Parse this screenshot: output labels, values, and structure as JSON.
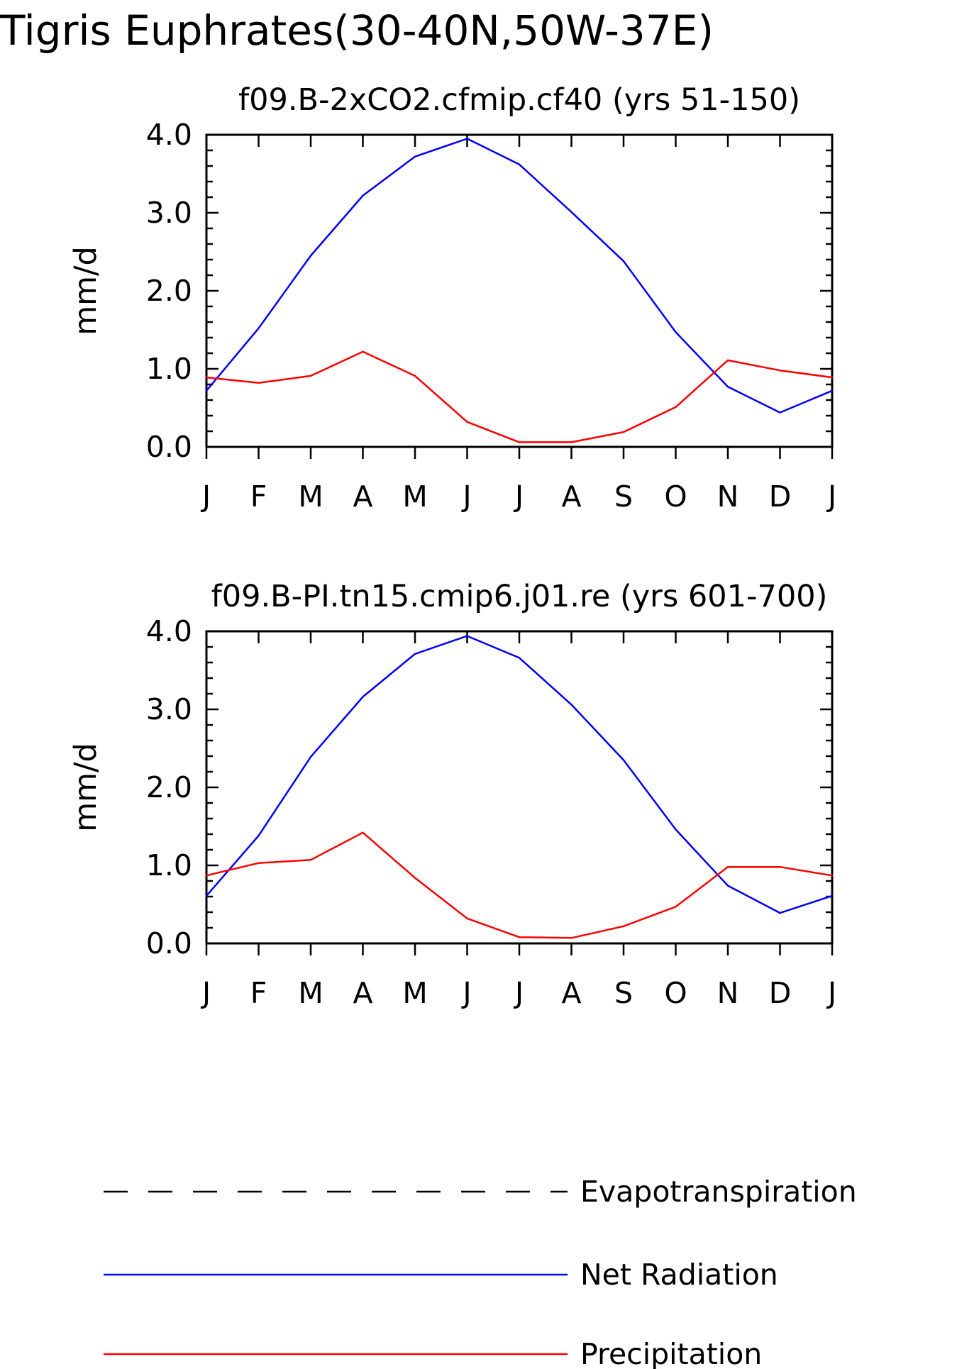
{
  "figure": {
    "title": "Tigris Euphrates(30-40N,50W-37E)"
  },
  "legend": {
    "entries": [
      {
        "name": "Evapotranspiration",
        "color": "#000000",
        "style": "dashed"
      },
      {
        "name": "Net Radiation",
        "color": "#0000ff",
        "style": "solid"
      },
      {
        "name": "Precipitation",
        "color": "#ff0000",
        "style": "solid"
      }
    ]
  },
  "chart_data": [
    {
      "type": "line",
      "title": "f09.B-2xCO2.cfmip.cf40 (yrs 51-150)",
      "xlabel": "",
      "ylabel": "mm/d",
      "categories": [
        "J",
        "F",
        "M",
        "A",
        "M",
        "J",
        "J",
        "A",
        "S",
        "O",
        "N",
        "D",
        "J"
      ],
      "ylim": [
        0,
        4
      ],
      "yticks": [
        "0.0",
        "1.0",
        "2.0",
        "3.0",
        "4.0"
      ],
      "grid": false,
      "series": [
        {
          "name": "Net Radiation",
          "color": "#0000ff",
          "values": [
            0.72,
            1.52,
            2.45,
            3.22,
            3.72,
            3.95,
            3.62,
            3.01,
            2.38,
            1.47,
            0.77,
            0.44,
            0.72
          ]
        },
        {
          "name": "Precipitation",
          "color": "#ff0000",
          "values": [
            0.89,
            0.82,
            0.91,
            1.22,
            0.91,
            0.32,
            0.06,
            0.06,
            0.19,
            0.51,
            1.11,
            0.98,
            0.89
          ]
        }
      ]
    },
    {
      "type": "line",
      "title": "f09.B-PI.tn15.cmip6.j01.re (yrs 601-700)",
      "xlabel": "",
      "ylabel": "mm/d",
      "categories": [
        "J",
        "F",
        "M",
        "A",
        "M",
        "J",
        "J",
        "A",
        "S",
        "O",
        "N",
        "D",
        "J"
      ],
      "ylim": [
        0,
        4
      ],
      "yticks": [
        "0.0",
        "1.0",
        "2.0",
        "3.0",
        "4.0"
      ],
      "grid": false,
      "series": [
        {
          "name": "Net Radiation",
          "color": "#0000ff",
          "values": [
            0.61,
            1.38,
            2.39,
            3.16,
            3.71,
            3.94,
            3.66,
            3.06,
            2.35,
            1.46,
            0.74,
            0.39,
            0.61
          ]
        },
        {
          "name": "Precipitation",
          "color": "#ff0000",
          "values": [
            0.87,
            1.03,
            1.07,
            1.42,
            0.84,
            0.32,
            0.08,
            0.07,
            0.22,
            0.47,
            0.98,
            0.98,
            0.87
          ]
        }
      ]
    }
  ]
}
